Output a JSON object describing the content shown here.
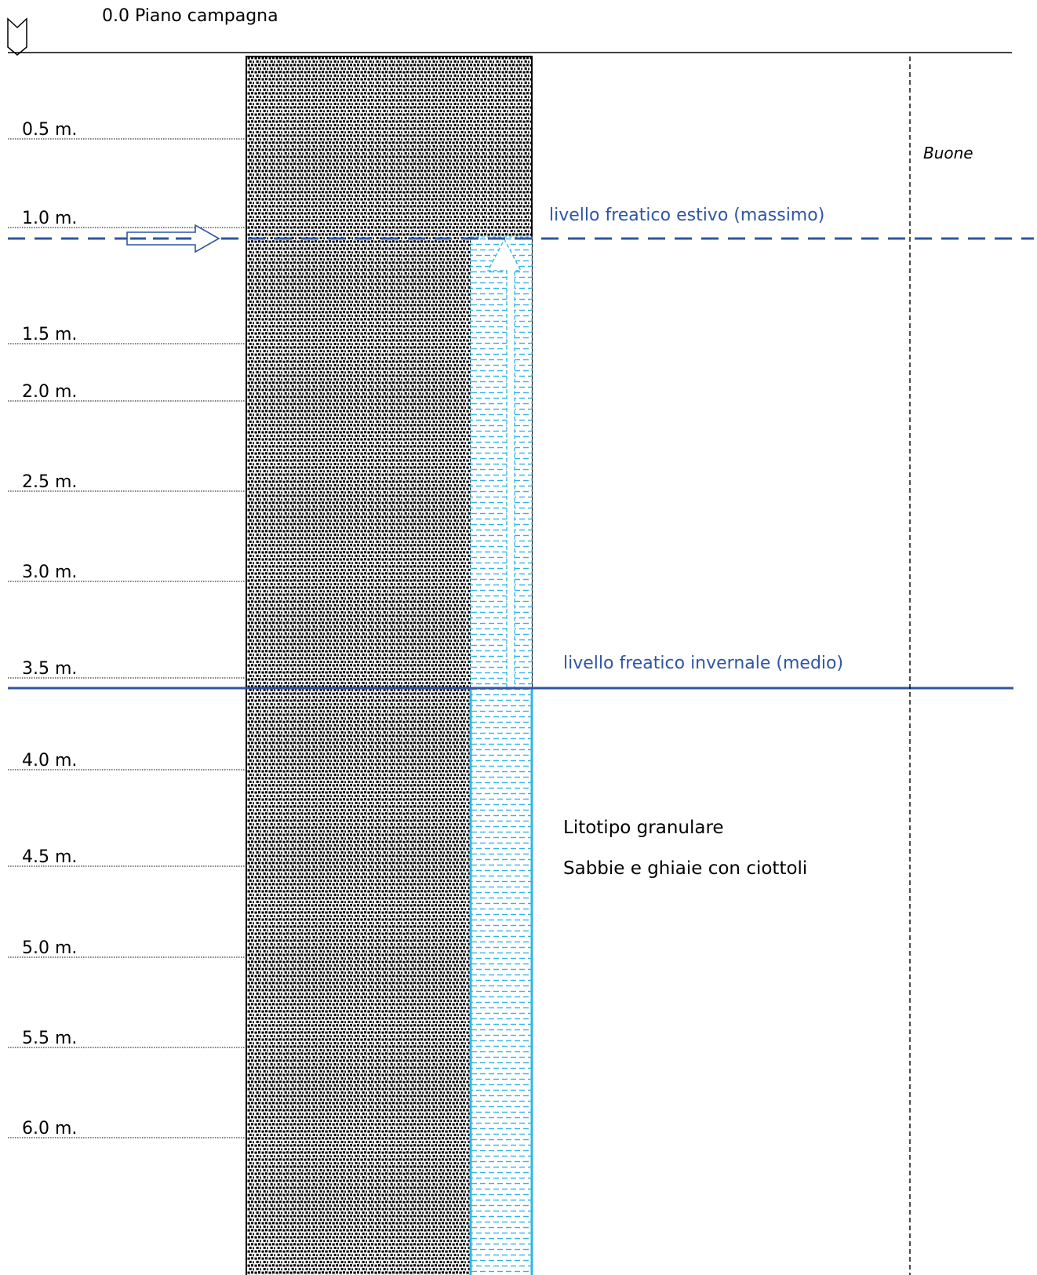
{
  "header": {
    "label": "0.0 Piano campagna"
  },
  "depth_labels": [
    "0.5 m.",
    "1.0 m.",
    "1.5 m.",
    "2.0 m.",
    "2.5 m.",
    "3.0 m.",
    "3.5 m.",
    "4.0 m.",
    "4.5 m.",
    "5.0 m.",
    "5.5 m.",
    "6.0 m."
  ],
  "water_levels": {
    "summer": {
      "label": "livello freatico estivo (massimo)",
      "depth_m": 1.1
    },
    "winter": {
      "label": "livello freatico invernale (medio)",
      "depth_m": 3.5
    }
  },
  "side_note": "Buone",
  "lithology": {
    "title": "Litotipo granulare",
    "description": "Sabbie e ghiaie con ciottoli"
  },
  "colors": {
    "level_line": "#2f55a4",
    "water": "#32b4e6",
    "soil_dots": "#000000",
    "text": "#000000"
  }
}
